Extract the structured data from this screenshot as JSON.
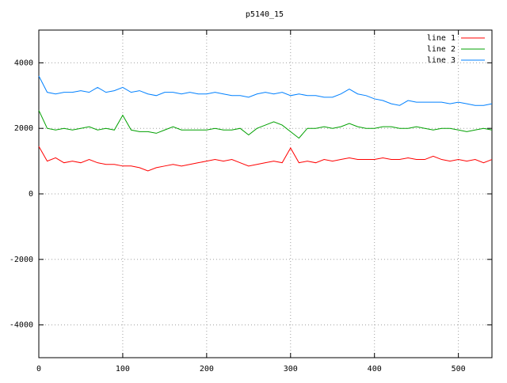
{
  "chart_data": {
    "type": "line",
    "title": "p5140_15",
    "x": [
      0,
      10,
      20,
      30,
      40,
      50,
      60,
      70,
      80,
      90,
      100,
      110,
      120,
      130,
      140,
      150,
      160,
      170,
      180,
      190,
      200,
      210,
      220,
      230,
      240,
      250,
      260,
      270,
      280,
      290,
      300,
      310,
      320,
      330,
      340,
      350,
      360,
      370,
      380,
      390,
      400,
      410,
      420,
      430,
      440,
      450,
      460,
      470,
      480,
      490,
      500,
      510,
      520,
      530,
      540
    ],
    "series": [
      {
        "name": "line 1",
        "color": "#ff0000",
        "values": [
          1450,
          1000,
          1100,
          950,
          1000,
          950,
          1050,
          950,
          900,
          900,
          850,
          850,
          800,
          700,
          800,
          850,
          900,
          850,
          900,
          950,
          1000,
          1050,
          1000,
          1050,
          950,
          850,
          900,
          950,
          1000,
          950,
          1400,
          950,
          1000,
          950,
          1050,
          1000,
          1050,
          1100,
          1050,
          1050,
          1050,
          1100,
          1050,
          1050,
          1100,
          1050,
          1050,
          1150,
          1050,
          1000,
          1050,
          1000,
          1050,
          950,
          1050
        ]
      },
      {
        "name": "line 2",
        "color": "#00a000",
        "values": [
          2550,
          2000,
          1950,
          2000,
          1950,
          2000,
          2050,
          1950,
          2000,
          1950,
          2400,
          1950,
          1900,
          1900,
          1850,
          1950,
          2050,
          1950,
          1950,
          1950,
          1950,
          2000,
          1950,
          1950,
          2000,
          1800,
          2000,
          2100,
          2200,
          2100,
          1900,
          1700,
          2000,
          2000,
          2050,
          2000,
          2050,
          2150,
          2050,
          2000,
          2000,
          2050,
          2050,
          2000,
          2000,
          2050,
          2000,
          1950,
          2000,
          2000,
          1950,
          1900,
          1950,
          2000,
          1950
        ]
      },
      {
        "name": "line 3",
        "color": "#0080ff",
        "values": [
          3600,
          3100,
          3050,
          3100,
          3100,
          3150,
          3100,
          3250,
          3100,
          3150,
          3250,
          3100,
          3150,
          3050,
          3000,
          3100,
          3100,
          3050,
          3100,
          3050,
          3050,
          3100,
          3050,
          3000,
          3000,
          2950,
          3050,
          3100,
          3050,
          3100,
          3000,
          3050,
          3000,
          3000,
          2950,
          2950,
          3050,
          3200,
          3050,
          3000,
          2900,
          2850,
          2750,
          2700,
          2850,
          2800,
          2800,
          2800,
          2800,
          2750,
          2800,
          2750,
          2700,
          2700,
          2750
        ]
      }
    ],
    "xlim": [
      0,
      540
    ],
    "xticks": [
      0,
      100,
      200,
      300,
      400,
      500
    ],
    "ylim": [
      -5000,
      5000
    ],
    "yticks": [
      -4000,
      -2000,
      0,
      2000,
      4000
    ],
    "grid": true,
    "legend": "top-right"
  }
}
